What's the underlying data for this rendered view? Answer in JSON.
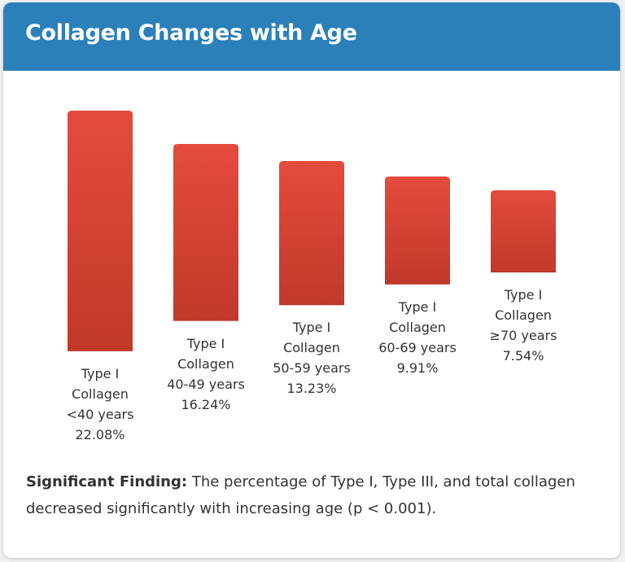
{
  "header": {
    "title": "Collagen Changes with Age"
  },
  "colors": {
    "header_bg": "#2b80ba",
    "bar_top": "#e54b3c",
    "bar_bottom": "#c0392b",
    "text": "#333333"
  },
  "chart_data": {
    "type": "bar",
    "title": "Collagen Changes with Age",
    "xlabel": "",
    "ylabel": "",
    "categories": [
      {
        "line1": "Type I",
        "line2": "Collagen",
        "line3": "<40 years",
        "value_label": "22.08%"
      },
      {
        "line1": "Type I",
        "line2": "Collagen",
        "line3": "40-49 years",
        "value_label": "16.24%"
      },
      {
        "line1": "Type I",
        "line2": "Collagen",
        "line3": "50-59 years",
        "value_label": "13.23%"
      },
      {
        "line1": "Type I",
        "line2": "Collagen",
        "line3": "60-69 years",
        "value_label": "9.91%"
      },
      {
        "line1": "Type I",
        "line2": "Collagen",
        "line3": "≥70 years",
        "value_label": "7.54%"
      }
    ],
    "values": [
      22.08,
      16.24,
      13.23,
      9.91,
      7.54
    ],
    "unit": "%"
  },
  "finding": {
    "label": "Significant Finding:",
    "text": "The percentage of Type I, Type III, and total collagen decreased significantly with increasing age (p < 0.001)."
  }
}
